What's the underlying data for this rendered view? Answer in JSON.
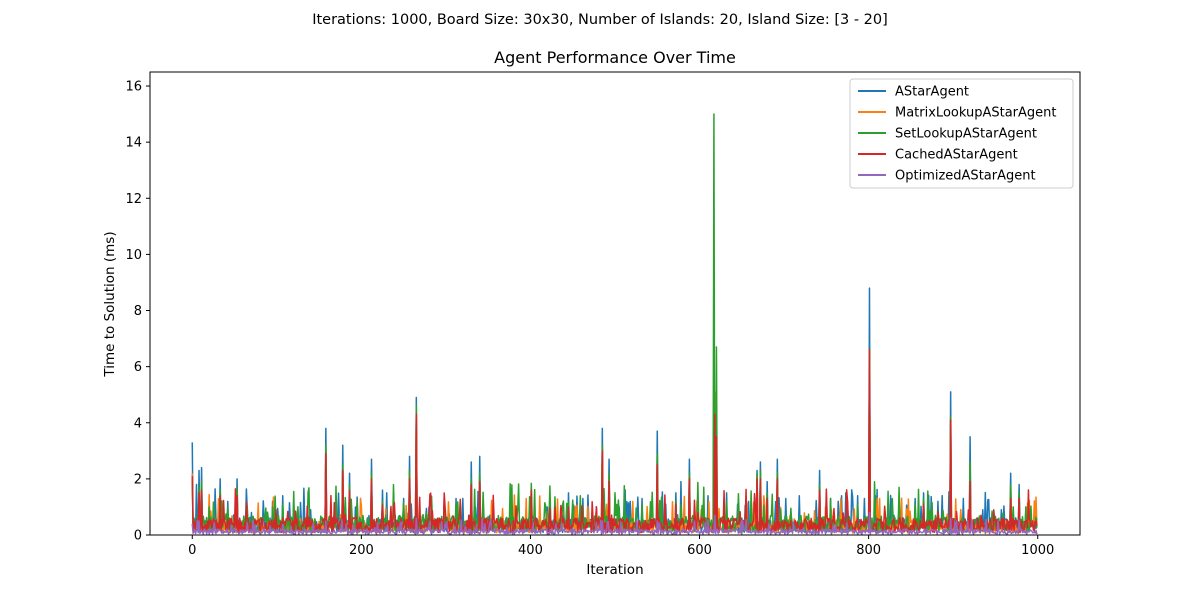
{
  "figure": {
    "suptitle": "Iterations: 1000, Board Size: 30x30, Number of Islands: 20, Island Size: [3 - 20]"
  },
  "chart_data": {
    "type": "line",
    "title": "Agent Performance Over Time",
    "xlabel": "Iteration",
    "ylabel": "Time to Solution (ms)",
    "xlim": [
      -50,
      1050
    ],
    "ylim": [
      0,
      16.5
    ],
    "xticks": [
      0,
      200,
      400,
      600,
      800,
      1000
    ],
    "yticks": [
      0,
      2,
      4,
      6,
      8,
      10,
      12,
      14,
      16
    ],
    "grid": false,
    "legend_position": "top-right",
    "x_range": [
      0,
      999
    ],
    "series": [
      {
        "name": "AStarAgent",
        "color": "#1f77b4",
        "base": 0.35,
        "peaks": [
          [
            0,
            3.3
          ],
          [
            5,
            1.8
          ],
          [
            8,
            2.3
          ],
          [
            11,
            2.4
          ],
          [
            20,
            1.0
          ],
          [
            33,
            2.0
          ],
          [
            42,
            1.2
          ],
          [
            53,
            2.0
          ],
          [
            70,
            0.8
          ],
          [
            95,
            1.2
          ],
          [
            107,
            1.4
          ],
          [
            120,
            0.9
          ],
          [
            140,
            0.9
          ],
          [
            158,
            3.8
          ],
          [
            178,
            3.2
          ],
          [
            186,
            2.2
          ],
          [
            193,
            1.0
          ],
          [
            212,
            2.7
          ],
          [
            225,
            1.6
          ],
          [
            230,
            1.5
          ],
          [
            240,
            0.7
          ],
          [
            250,
            1.3
          ],
          [
            257,
            2.8
          ],
          [
            265,
            4.9
          ],
          [
            280,
            1.0
          ],
          [
            298,
            1.3
          ],
          [
            312,
            1.3
          ],
          [
            320,
            1.3
          ],
          [
            330,
            2.6
          ],
          [
            340,
            2.8
          ],
          [
            352,
            0.7
          ],
          [
            375,
            0.6
          ],
          [
            400,
            0.5
          ],
          [
            420,
            1.0
          ],
          [
            445,
            1.5
          ],
          [
            462,
            1.3
          ],
          [
            478,
            1.0
          ],
          [
            485,
            3.8
          ],
          [
            493,
            2.7
          ],
          [
            505,
            1.0
          ],
          [
            518,
            1.2
          ],
          [
            532,
            1.3
          ],
          [
            550,
            3.7
          ],
          [
            560,
            1.1
          ],
          [
            572,
            1.5
          ],
          [
            578,
            1.9
          ],
          [
            588,
            2.7
          ],
          [
            610,
            1.4
          ],
          [
            618,
            4.4
          ],
          [
            632,
            1.5
          ],
          [
            645,
            1.1
          ],
          [
            658,
            1.2
          ],
          [
            668,
            2.3
          ],
          [
            672,
            2.6
          ],
          [
            680,
            1.9
          ],
          [
            692,
            2.7
          ],
          [
            702,
            1.3
          ],
          [
            718,
            1.4
          ],
          [
            742,
            2.3
          ],
          [
            755,
            1.3
          ],
          [
            768,
            1.4
          ],
          [
            775,
            1.2
          ],
          [
            787,
            1.4
          ],
          [
            795,
            1.3
          ],
          [
            801,
            8.8
          ],
          [
            808,
            1.4
          ],
          [
            830,
            0.7
          ],
          [
            855,
            1.3
          ],
          [
            865,
            1.5
          ],
          [
            882,
            1.2
          ],
          [
            897,
            5.1
          ],
          [
            912,
            1.3
          ],
          [
            920,
            3.5
          ],
          [
            935,
            0.9
          ],
          [
            948,
            0.9
          ],
          [
            957,
            0.9
          ],
          [
            968,
            2.2
          ],
          [
            978,
            1.8
          ],
          [
            986,
            1.0
          ]
        ]
      },
      {
        "name": "MatrixLookupAStarAgent",
        "color": "#ff7f0e",
        "base": 0.3,
        "peaks": [
          [
            0,
            2.2
          ],
          [
            8,
            1.6
          ],
          [
            11,
            1.7
          ],
          [
            33,
            1.5
          ],
          [
            53,
            1.5
          ],
          [
            158,
            3.0
          ],
          [
            178,
            2.4
          ],
          [
            212,
            2.1
          ],
          [
            257,
            2.2
          ],
          [
            265,
            4.4
          ],
          [
            330,
            1.9
          ],
          [
            340,
            2.0
          ],
          [
            485,
            3.1
          ],
          [
            493,
            2.0
          ],
          [
            550,
            2.8
          ],
          [
            588,
            2.1
          ],
          [
            618,
            5.1
          ],
          [
            620,
            4.6
          ],
          [
            668,
            2.1
          ],
          [
            672,
            2.2
          ],
          [
            692,
            2.2
          ],
          [
            742,
            1.6
          ],
          [
            801,
            6.6
          ],
          [
            897,
            4.2
          ],
          [
            920,
            2.5
          ],
          [
            968,
            1.7
          ]
        ]
      },
      {
        "name": "SetLookupAStarAgent",
        "color": "#2ca02c",
        "base": 0.4,
        "peaks": [
          [
            0,
            2.0
          ],
          [
            8,
            1.7
          ],
          [
            11,
            1.9
          ],
          [
            20,
            1.0
          ],
          [
            33,
            1.6
          ],
          [
            42,
            1.0
          ],
          [
            53,
            1.7
          ],
          [
            95,
            1.0
          ],
          [
            107,
            1.1
          ],
          [
            158,
            3.2
          ],
          [
            178,
            2.5
          ],
          [
            186,
            1.8
          ],
          [
            212,
            2.2
          ],
          [
            225,
            1.2
          ],
          [
            257,
            2.3
          ],
          [
            265,
            4.6
          ],
          [
            298,
            1.1
          ],
          [
            312,
            1.1
          ],
          [
            330,
            2.0
          ],
          [
            340,
            2.2
          ],
          [
            445,
            1.2
          ],
          [
            462,
            1.0
          ],
          [
            485,
            3.2
          ],
          [
            493,
            2.2
          ],
          [
            532,
            1.1
          ],
          [
            550,
            2.9
          ],
          [
            572,
            1.2
          ],
          [
            588,
            2.2
          ],
          [
            617,
            15.0
          ],
          [
            620,
            6.7
          ],
          [
            632,
            1.2
          ],
          [
            668,
            2.2
          ],
          [
            672,
            2.3
          ],
          [
            680,
            1.5
          ],
          [
            692,
            2.2
          ],
          [
            742,
            1.8
          ],
          [
            755,
            1.3
          ],
          [
            787,
            1.1
          ],
          [
            801,
            6.6
          ],
          [
            855,
            1.1
          ],
          [
            865,
            1.3
          ],
          [
            897,
            4.2
          ],
          [
            920,
            2.6
          ],
          [
            968,
            1.8
          ],
          [
            978,
            1.5
          ],
          [
            986,
            1.0
          ]
        ]
      },
      {
        "name": "CachedAStarAgent",
        "color": "#d62728",
        "base": 0.35,
        "peaks": [
          [
            0,
            2.1
          ],
          [
            8,
            1.5
          ],
          [
            11,
            1.6
          ],
          [
            33,
            1.4
          ],
          [
            53,
            1.4
          ],
          [
            158,
            2.9
          ],
          [
            178,
            2.3
          ],
          [
            186,
            1.6
          ],
          [
            212,
            2.0
          ],
          [
            257,
            2.0
          ],
          [
            265,
            4.3
          ],
          [
            330,
            1.8
          ],
          [
            340,
            1.9
          ],
          [
            445,
            1.0
          ],
          [
            485,
            3.0
          ],
          [
            493,
            1.9
          ],
          [
            550,
            2.5
          ],
          [
            572,
            1.1
          ],
          [
            588,
            2.0
          ],
          [
            618,
            4.3
          ],
          [
            620,
            3.5
          ],
          [
            668,
            2.0
          ],
          [
            672,
            2.0
          ],
          [
            680,
            1.3
          ],
          [
            692,
            2.0
          ],
          [
            742,
            1.6
          ],
          [
            801,
            6.6
          ],
          [
            865,
            1.1
          ],
          [
            897,
            4.1
          ],
          [
            920,
            1.9
          ],
          [
            968,
            1.3
          ],
          [
            978,
            1.3
          ]
        ]
      },
      {
        "name": "OptimizedAStarAgent",
        "color": "#9467bd",
        "base": 0.12,
        "peaks": [
          [
            0,
            0.4
          ],
          [
            8,
            0.5
          ],
          [
            158,
            0.5
          ],
          [
            265,
            0.6
          ],
          [
            485,
            0.5
          ],
          [
            550,
            0.5
          ],
          [
            618,
            0.7
          ],
          [
            801,
            0.8
          ],
          [
            897,
            0.6
          ]
        ]
      }
    ]
  }
}
